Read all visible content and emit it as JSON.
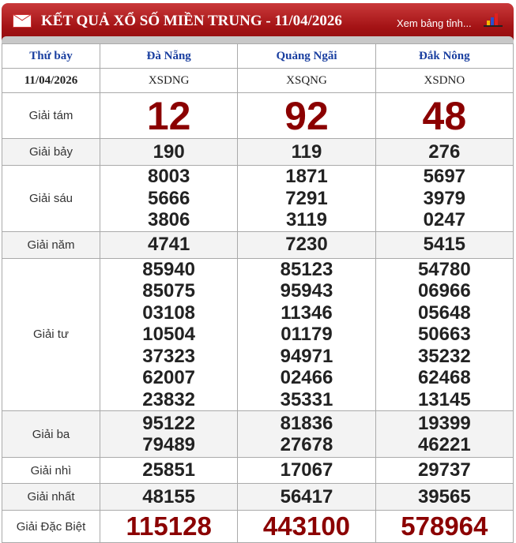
{
  "header": {
    "title": "KẾT QUẢ XỔ SỐ MIỀN TRUNG - 11/04/2026",
    "link": "Xem bảng tỉnh..."
  },
  "table": {
    "day": "Thứ bảy",
    "date": "11/04/2026",
    "provinces": [
      {
        "name": "Đà Nẵng",
        "code": "XSDNG"
      },
      {
        "name": "Quảng Ngãi",
        "code": "XSQNG"
      },
      {
        "name": "Đắk Nông",
        "code": "XSDNO"
      }
    ],
    "prizes": [
      {
        "label": "Giải tám",
        "values": [
          [
            "12"
          ],
          [
            "92"
          ],
          [
            "48"
          ]
        ]
      },
      {
        "label": "Giải bảy",
        "values": [
          [
            "190"
          ],
          [
            "119"
          ],
          [
            "276"
          ]
        ]
      },
      {
        "label": "Giải sáu",
        "values": [
          [
            "8003",
            "5666",
            "3806"
          ],
          [
            "1871",
            "7291",
            "3119"
          ],
          [
            "5697",
            "3979",
            "0247"
          ]
        ]
      },
      {
        "label": "Giải năm",
        "values": [
          [
            "4741"
          ],
          [
            "7230"
          ],
          [
            "5415"
          ]
        ]
      },
      {
        "label": "Giải tư",
        "values": [
          [
            "85940",
            "85075",
            "03108",
            "10504",
            "37323",
            "62007",
            "23832"
          ],
          [
            "85123",
            "95943",
            "11346",
            "01179",
            "94971",
            "02466",
            "35331"
          ],
          [
            "54780",
            "06966",
            "05648",
            "50663",
            "35232",
            "62468",
            "13145"
          ]
        ]
      },
      {
        "label": "Giải ba",
        "values": [
          [
            "95122",
            "79489"
          ],
          [
            "81836",
            "27678"
          ],
          [
            "19399",
            "46221"
          ]
        ]
      },
      {
        "label": "Giải nhì",
        "values": [
          [
            "25851"
          ],
          [
            "17067"
          ],
          [
            "29737"
          ]
        ]
      },
      {
        "label": "Giải nhất",
        "values": [
          [
            "48155"
          ],
          [
            "56417"
          ],
          [
            "39565"
          ]
        ]
      },
      {
        "label": "Giải Đặc Biệt",
        "values": [
          [
            "115128"
          ],
          [
            "443100"
          ],
          [
            "578964"
          ]
        ]
      }
    ]
  },
  "colors": {
    "header_red": "#a31214",
    "prize_red": "#8b0000",
    "province_blue": "#1a3fa0"
  }
}
